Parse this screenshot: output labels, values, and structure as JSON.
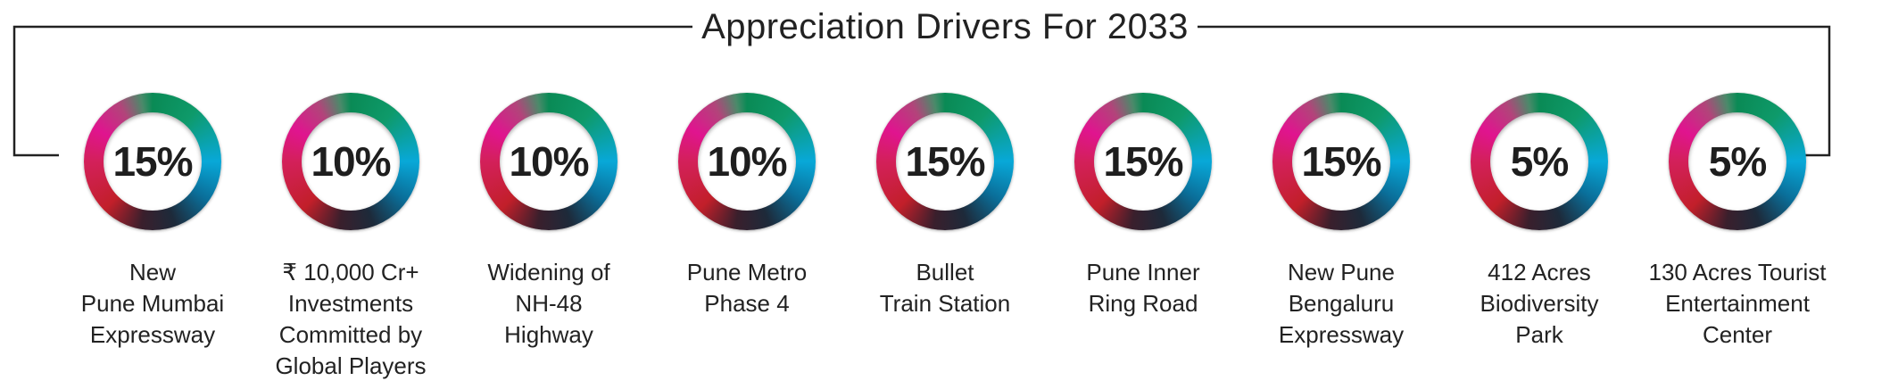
{
  "title": "Appreciation Drivers For 2033",
  "colors": {
    "ring_green": "#0a8a55",
    "ring_cyan": "#08a8d8",
    "ring_dark": "#1d2a3a",
    "ring_red": "#c21f2a",
    "ring_magenta": "#e0148f",
    "text": "#222222"
  },
  "drivers": [
    {
      "percent": "15%",
      "label_lines": [
        "New",
        "Pune Mumbai",
        "Expressway"
      ]
    },
    {
      "percent": "10%",
      "label_lines": [
        "₹ 10,000 Cr+",
        "Investments",
        "Committed by",
        "Global Players"
      ]
    },
    {
      "percent": "10%",
      "label_lines": [
        "Widening of",
        "NH-48",
        "Highway"
      ]
    },
    {
      "percent": "10%",
      "label_lines": [
        "Pune Metro",
        "Phase 4"
      ]
    },
    {
      "percent": "15%",
      "label_lines": [
        "Bullet",
        "Train Station"
      ]
    },
    {
      "percent": "15%",
      "label_lines": [
        "Pune Inner",
        "Ring Road"
      ]
    },
    {
      "percent": "15%",
      "label_lines": [
        "New Pune",
        "Bengaluru",
        "Expressway"
      ]
    },
    {
      "percent": "5%",
      "label_lines": [
        "412 Acres",
        "Biodiversity",
        "Park"
      ]
    },
    {
      "percent": "5%",
      "label_lines": [
        "130 Acres Tourist",
        "Entertainment",
        "Center"
      ]
    }
  ]
}
